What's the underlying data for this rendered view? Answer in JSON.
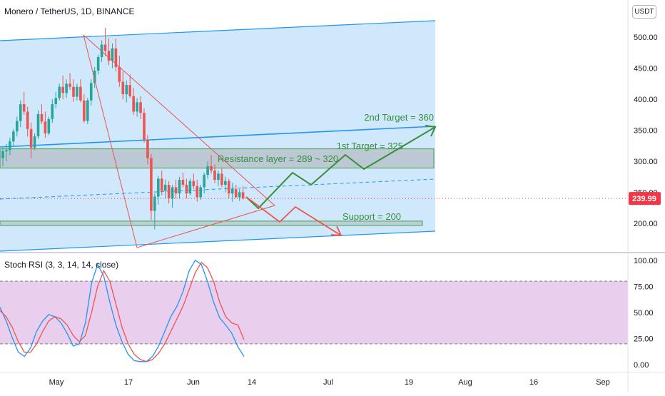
{
  "header": {
    "symbol_title": "Monero / TetherUS, 1D, BINANCE",
    "currency": "USDT"
  },
  "indicator": {
    "title": "Stoch RSI (3, 3, 14, 14, close)"
  },
  "colors": {
    "up": "#26a69a",
    "down": "#ef5350",
    "channel_line": "#2196f3",
    "channel_fill": "#bbdefb",
    "zone_border": "#43a047",
    "zone_fill": "#a5a5a5",
    "target_arrow": "#388e3c",
    "bear_arrow": "#ef5350",
    "rsi_band": "#e1bee7",
    "price_label": "#f23645"
  },
  "chart_data": [
    {
      "type": "candlestick",
      "title": "Monero / TetherUS, 1D, BINANCE",
      "x_tick_labels": [
        "May",
        "17",
        "Jun",
        "14",
        "Jul",
        "19",
        "Aug",
        "16",
        "Sep"
      ],
      "y_ticks": [
        200,
        250,
        300,
        350,
        400,
        450,
        500
      ],
      "ylim": [
        155,
        560
      ],
      "last_price": 239.99,
      "last_price_label": "239.99",
      "annotations": [
        {
          "text": "2nd Target = 360",
          "value": 360
        },
        {
          "text": "1st Target = 325",
          "value": 325
        },
        {
          "text": "Resistance layer = 289 ~ 320",
          "range": [
            289,
            320
          ]
        },
        {
          "text": "Support = 200",
          "value": 200
        }
      ],
      "candles_ohlc": [
        [
          305,
          322,
          292,
          316
        ],
        [
          316,
          328,
          300,
          318
        ],
        [
          318,
          338,
          310,
          332
        ],
        [
          332,
          352,
          325,
          348
        ],
        [
          348,
          372,
          340,
          365
        ],
        [
          365,
          398,
          355,
          392
        ],
        [
          392,
          412,
          375,
          380
        ],
        [
          380,
          388,
          340,
          352
        ],
        [
          352,
          362,
          305,
          322
        ],
        [
          322,
          345,
          318,
          340
        ],
        [
          340,
          382,
          336,
          376
        ],
        [
          376,
          392,
          360,
          364
        ],
        [
          364,
          380,
          338,
          345
        ],
        [
          345,
          372,
          342,
          368
        ],
        [
          368,
          400,
          362,
          392
        ],
        [
          392,
          412,
          385,
          402
        ],
        [
          402,
          425,
          398,
          420
        ],
        [
          420,
          438,
          400,
          410
        ],
        [
          410,
          432,
          402,
          425
        ],
        [
          425,
          442,
          415,
          420
        ],
        [
          420,
          432,
          396,
          404
        ],
        [
          404,
          425,
          398,
          420
        ],
        [
          420,
          432,
          395,
          398
        ],
        [
          398,
          408,
          362,
          365
        ],
        [
          365,
          402,
          360,
          398
        ],
        [
          398,
          432,
          390,
          426
        ],
        [
          426,
          452,
          418,
          446
        ],
        [
          446,
          472,
          440,
          468
        ],
        [
          468,
          495,
          460,
          488
        ],
        [
          488,
          515,
          470,
          478
        ],
        [
          478,
          498,
          455,
          462
        ],
        [
          462,
          490,
          450,
          482
        ],
        [
          482,
          498,
          445,
          452
        ],
        [
          452,
          470,
          420,
          428
        ],
        [
          428,
          445,
          400,
          408
        ],
        [
          408,
          430,
          395,
          423
        ],
        [
          423,
          440,
          402,
          405
        ],
        [
          405,
          418,
          375,
          380
        ],
        [
          380,
          402,
          372,
          395
        ],
        [
          395,
          405,
          368,
          378
        ],
        [
          378,
          385,
          330,
          335
        ],
        [
          335,
          342,
          295,
          305
        ],
        [
          305,
          312,
          205,
          220
        ],
        [
          220,
          248,
          190,
          243
        ],
        [
          243,
          276,
          230,
          272
        ],
        [
          272,
          285,
          245,
          252
        ],
        [
          252,
          270,
          240,
          262
        ],
        [
          262,
          268,
          232,
          240
        ],
        [
          240,
          262,
          225,
          258
        ],
        [
          258,
          270,
          240,
          248
        ],
        [
          248,
          275,
          240,
          270
        ],
        [
          270,
          282,
          258,
          262
        ],
        [
          262,
          272,
          240,
          248
        ],
        [
          248,
          272,
          245,
          268
        ],
        [
          268,
          280,
          255,
          260
        ],
        [
          260,
          270,
          235,
          242
        ],
        [
          242,
          262,
          238,
          258
        ],
        [
          258,
          282,
          248,
          278
        ],
        [
          278,
          300,
          272,
          292
        ],
        [
          292,
          310,
          280,
          285
        ],
        [
          285,
          295,
          265,
          270
        ],
        [
          270,
          285,
          260,
          280
        ],
        [
          280,
          290,
          258,
          262
        ],
        [
          262,
          275,
          250,
          268
        ],
        [
          268,
          272,
          240,
          248
        ],
        [
          248,
          265,
          235,
          255
        ],
        [
          255,
          262,
          240,
          242
        ],
        [
          242,
          255,
          236,
          250
        ],
        [
          250,
          260,
          238,
          240
        ]
      ]
    },
    {
      "type": "line",
      "title": "Stoch RSI (3, 3, 14, 14, close)",
      "y_ticks": [
        0,
        25,
        50,
        75,
        100
      ],
      "ylim": [
        -6,
        106
      ],
      "bands": [
        20,
        80
      ],
      "series": [
        {
          "values": [
            55,
            42,
            26,
            12,
            8,
            16,
            32,
            42,
            48,
            46,
            40,
            30,
            18,
            20,
            40,
            78,
            96,
            85,
            60,
            38,
            22,
            10,
            4,
            3,
            3,
            8,
            18,
            32,
            46,
            56,
            70,
            90,
            100,
            96,
            80,
            60,
            45,
            38,
            30,
            17,
            8
          ]
        },
        {
          "values": [
            52,
            46,
            36,
            22,
            12,
            12,
            20,
            32,
            42,
            46,
            44,
            38,
            28,
            22,
            28,
            50,
            75,
            90,
            80,
            58,
            36,
            20,
            10,
            5,
            3,
            5,
            11,
            20,
            32,
            44,
            56,
            72,
            88,
            98,
            93,
            80,
            60,
            46,
            40,
            38,
            24
          ]
        }
      ]
    }
  ]
}
